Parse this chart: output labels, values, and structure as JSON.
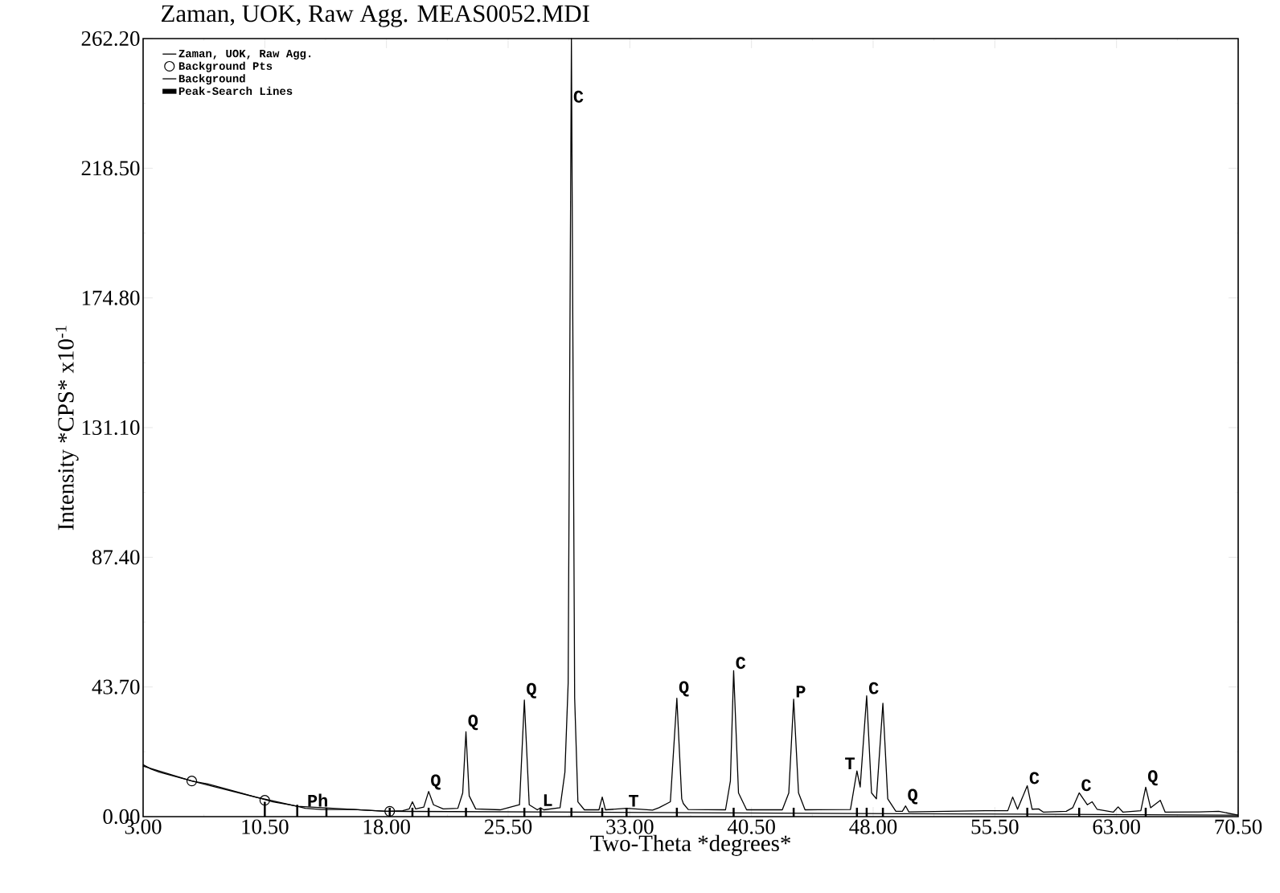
{
  "chart_data": {
    "type": "line",
    "title": "Zaman, UOK, Raw Agg. MEAS0052.MDI",
    "xlabel": "Two-Theta *degrees*",
    "ylabel": "Intensity *CPS* x10$^{-1}$",
    "xlim": [
      3,
      70.5
    ],
    "ylim": [
      0,
      262.2
    ],
    "xticks": [
      {
        "value": 3,
        "label": "3.00"
      },
      {
        "value": 10.5,
        "label": "10.50"
      },
      {
        "value": 18,
        "label": "18.00"
      },
      {
        "value": 25.5,
        "label": "25.50"
      },
      {
        "value": 33,
        "label": "33.00"
      },
      {
        "value": 40.5,
        "label": "40.50"
      },
      {
        "value": 48,
        "label": "48.00"
      },
      {
        "value": 55.5,
        "label": "55.50"
      },
      {
        "value": 63,
        "label": "63.00"
      },
      {
        "value": 70.5,
        "label": "70.50"
      }
    ],
    "yticks": [
      {
        "value": 0,
        "label": "0.00"
      },
      {
        "value": 43.7,
        "label": "43.70"
      },
      {
        "value": 87.4,
        "label": "87.40"
      },
      {
        "value": 131.1,
        "label": "131.10"
      },
      {
        "value": 174.8,
        "label": "174.80"
      },
      {
        "value": 218.5,
        "label": "218.50"
      },
      {
        "value": 262.2,
        "label": "262.20"
      }
    ],
    "legend": "top left",
    "grid": false,
    "series": [
      {
        "name": "Zaman, UOK, Raw Agg.",
        "color": "#000000",
        "x": [
          3.0,
          3.5,
          4.0,
          5.0,
          6.0,
          7.0,
          8.0,
          9.0,
          10.0,
          11.0,
          12.0,
          12.5,
          13.0,
          14.0,
          16.0,
          18.0,
          19.0,
          19.4,
          19.6,
          19.8,
          20.3,
          20.6,
          20.9,
          21.5,
          22.4,
          22.7,
          22.9,
          23.1,
          23.5,
          25.0,
          26.2,
          26.5,
          26.8,
          27.3,
          27.5,
          27.7,
          28.7,
          29.0,
          29.2,
          29.4,
          29.6,
          29.8,
          30.2,
          31.1,
          31.3,
          31.5,
          32.8,
          34.4,
          34.8,
          35.5,
          35.9,
          36.2,
          36.3,
          36.6,
          38.9,
          39.2,
          39.4,
          39.7,
          40.2,
          42.4,
          42.8,
          43.1,
          43.4,
          43.8,
          46.6,
          47.0,
          47.2,
          47.6,
          47.9,
          48.2,
          48.6,
          48.9,
          49.4,
          49.8,
          50.0,
          50.2,
          54.9,
          56.3,
          56.6,
          56.9,
          57.5,
          57.8,
          58.2,
          58.5,
          59.9,
          60.3,
          60.7,
          61.2,
          61.5,
          61.8,
          62.8,
          63.1,
          63.4,
          64.5,
          64.8,
          65.1,
          65.7,
          66.0,
          68.1,
          69.3,
          70.5
        ],
        "values": [
          17.5,
          16,
          15,
          13.5,
          12,
          11,
          9.5,
          8,
          6.5,
          5,
          4,
          3.5,
          2.8,
          2.4,
          2.4,
          1.8,
          2.0,
          2.6,
          5,
          2.6,
          3.2,
          8.5,
          4,
          2.6,
          2.8,
          8,
          28.6,
          7,
          2.6,
          2.3,
          4,
          39.3,
          4,
          2.3,
          3,
          2.3,
          3,
          15,
          45,
          262.2,
          40,
          5,
          2.3,
          2.3,
          6.6,
          2.3,
          2.8,
          2.2,
          3,
          5,
          39.9,
          6,
          4.4,
          2.4,
          2.3,
          12,
          49.2,
          8,
          2.3,
          2.3,
          8,
          39.6,
          8,
          2.3,
          2.4,
          15.4,
          10,
          40.7,
          8,
          6,
          38.2,
          6,
          1.8,
          1.8,
          3.6,
          1.6,
          2.0,
          2.0,
          6.6,
          2.5,
          10.4,
          2.5,
          2.6,
          1.5,
          1.8,
          3,
          8,
          4,
          5,
          2.5,
          1.5,
          3.3,
          1.5,
          2,
          9.9,
          3,
          5.5,
          1.5,
          1.6,
          1.8,
          0.5
        ]
      },
      {
        "name": "Background Pts",
        "type": "scatter",
        "marker": "circle",
        "color": "#000000",
        "x": [
          6.0,
          10.5,
          18.2
        ],
        "values": [
          12,
          5.5,
          1.8
        ]
      },
      {
        "name": "Background",
        "color": "#000000",
        "x": [
          3,
          6,
          10,
          12.5,
          18,
          30,
          50,
          70.5
        ],
        "values": [
          17,
          12,
          6.5,
          3.5,
          1.8,
          1.5,
          1,
          0.5
        ]
      },
      {
        "name": "Peak-Search Lines",
        "type": "bar",
        "color": "#000000",
        "x": [
          10.5,
          12.5,
          14.3,
          18.2,
          19.6,
          20.6,
          22.9,
          26.5,
          27.5,
          29.4,
          31.3,
          32.8,
          35.9,
          39.4,
          43.1,
          47.0,
          47.6,
          48.6,
          57.5,
          60.7,
          64.8
        ],
        "values": [
          5,
          4,
          3,
          3,
          3,
          3,
          3,
          3,
          3,
          3,
          3,
          3,
          3,
          3,
          3,
          3,
          3,
          3,
          3,
          3,
          3
        ]
      }
    ],
    "annotations": [
      {
        "text": "Ph",
        "x": 13.0,
        "y": 2.8
      },
      {
        "text": "Q",
        "x": 20.6,
        "y": 8.5
      },
      {
        "text": "Q",
        "x": 22.9,
        "y": 28.6
      },
      {
        "text": "Q",
        "x": 26.5,
        "y": 39.3
      },
      {
        "text": "L",
        "x": 27.5,
        "y": 3
      },
      {
        "text": "C",
        "x": 29.4,
        "y": 240
      },
      {
        "text": "T",
        "x": 32.8,
        "y": 2.8
      },
      {
        "text": "Q",
        "x": 35.9,
        "y": 39.9
      },
      {
        "text": "C",
        "x": 39.4,
        "y": 49.2
      },
      {
        "text": "P",
        "x": 43.1,
        "y": 39.6
      },
      {
        "text": "T",
        "x": 47.0,
        "y": 15.4
      },
      {
        "text": "C",
        "x": 47.6,
        "y": 40.7
      },
      {
        "text": "Q",
        "x": 50.0,
        "y": 3.6
      },
      {
        "text": "C",
        "x": 57.5,
        "y": 10.4
      },
      {
        "text": "C",
        "x": 60.7,
        "y": 8
      },
      {
        "text": "Q",
        "x": 64.8,
        "y": 9.9
      }
    ]
  }
}
